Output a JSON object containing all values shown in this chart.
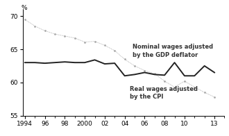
{
  "years": [
    1994,
    1995,
    1996,
    1997,
    1998,
    1999,
    2000,
    2001,
    2002,
    2003,
    2004,
    2005,
    2006,
    2007,
    2008,
    2009,
    2010,
    2011,
    2012,
    2013
  ],
  "nominal_gdp": [
    69.5,
    68.5,
    67.8,
    67.3,
    67.0,
    66.7,
    66.1,
    66.2,
    65.6,
    64.8,
    63.5,
    62.5,
    61.8,
    61.3,
    60.2,
    59.3,
    60.2,
    59.3,
    58.5,
    57.8
  ],
  "real_cpi": [
    63.0,
    63.0,
    62.9,
    63.0,
    63.1,
    63.0,
    63.0,
    63.4,
    62.8,
    62.9,
    61.0,
    61.2,
    61.5,
    61.2,
    61.1,
    63.0,
    61.0,
    61.0,
    62.5,
    61.5
  ],
  "nominal_color": "#aaaaaa",
  "real_color": "#222222",
  "ylim": [
    55,
    71
  ],
  "yticks": [
    55,
    60,
    65,
    70
  ],
  "xtick_labels": [
    "1994",
    "96",
    "98",
    "2000",
    "02",
    "04",
    "06",
    "08",
    "10",
    "13"
  ],
  "xtick_positions": [
    1994,
    1996,
    1998,
    2000,
    2002,
    2004,
    2006,
    2008,
    2010,
    2013
  ],
  "percent_label": "%",
  "label_nominal": "Nominal wages adjusted\nby the GDP deflator",
  "label_real": "Real wages adjusted\nby the CPI",
  "bg_color": "#ffffff"
}
